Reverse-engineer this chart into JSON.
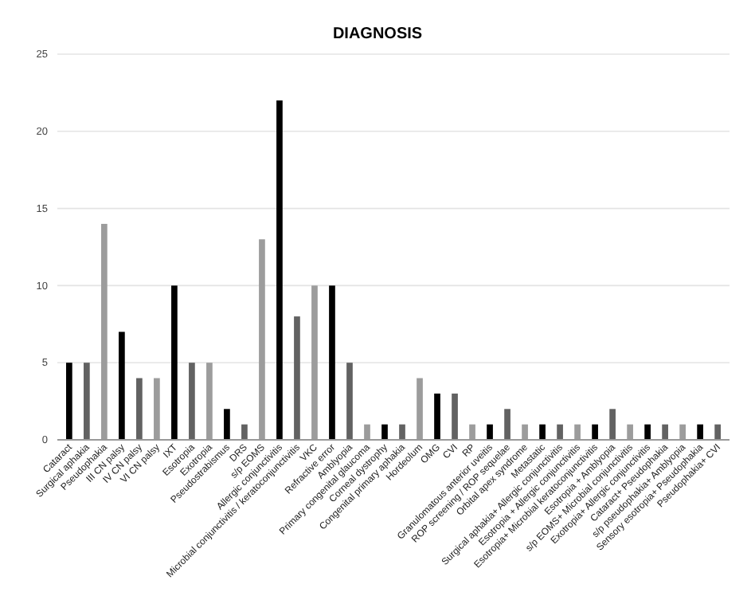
{
  "chart_data": {
    "type": "bar",
    "title": "DIAGNOSIS",
    "categories": [
      "Cataract",
      "Surgical aphakia",
      "Pseudophakia",
      "III CN palsy",
      "IV CN palsy",
      "VI CN palsy",
      "IXT",
      "Esotropia",
      "Exotropia",
      "Pseudostrabismus",
      "DRS",
      "s/p EOMS",
      "Allergic conjunctivitis",
      "Microbial conjunctivitis / keratoconjunctivitis",
      "VKC",
      "Refractive error",
      "Amblyopia",
      "Primary congenital glaucoma",
      "Corneal dystrophy",
      "Congenital primary aphakia",
      "Hordeolum",
      "OMG",
      "CVI",
      "RP",
      "Granulomatous anterior uveitis",
      "ROP screening / ROP sequelae",
      "Orbital apex syndrome",
      "Metastatic",
      "Surgical aphakia+ Allergic conjunctivitis",
      "Esotropia + Allergic conjunctivitis",
      "Esotropia+ Microbial keratoconjunctivitis",
      "Esotropia + Amblyopia",
      "s/p EOMS+ Microbial conjunctivitis",
      "Exotropia+ Allergic conjunctivitis",
      "Cataract+ Pseudophakia",
      "s/p pseudophakia+ Amblyopia",
      "Sensory esotropia+ Pseudophakia",
      "Pseudophakia+ CVI"
    ],
    "values": [
      5,
      5,
      14,
      7,
      4,
      4,
      10,
      5,
      5,
      2,
      1,
      13,
      22,
      8,
      10,
      10,
      5,
      1,
      1,
      1,
      4,
      3,
      3,
      1,
      1,
      2,
      1,
      1,
      1,
      1,
      1,
      2,
      1,
      1,
      1,
      1,
      1,
      1
    ],
    "colors": [
      "#000000",
      "#626262",
      "#9c9c9c",
      "#000000",
      "#626262",
      "#9c9c9c",
      "#000000",
      "#626262",
      "#9c9c9c",
      "#000000",
      "#626262",
      "#9c9c9c",
      "#000000",
      "#626262",
      "#9c9c9c",
      "#000000",
      "#626262",
      "#9c9c9c",
      "#000000",
      "#626262",
      "#9c9c9c",
      "#000000",
      "#626262",
      "#9c9c9c",
      "#000000",
      "#626262",
      "#9c9c9c",
      "#000000",
      "#626262",
      "#9c9c9c",
      "#000000",
      "#626262",
      "#9c9c9c",
      "#000000",
      "#626262",
      "#9c9c9c",
      "#000000",
      "#626262"
    ],
    "ylim": [
      0,
      25
    ],
    "yticks": [
      0,
      5,
      10,
      15,
      20,
      25
    ],
    "grid": "y"
  }
}
